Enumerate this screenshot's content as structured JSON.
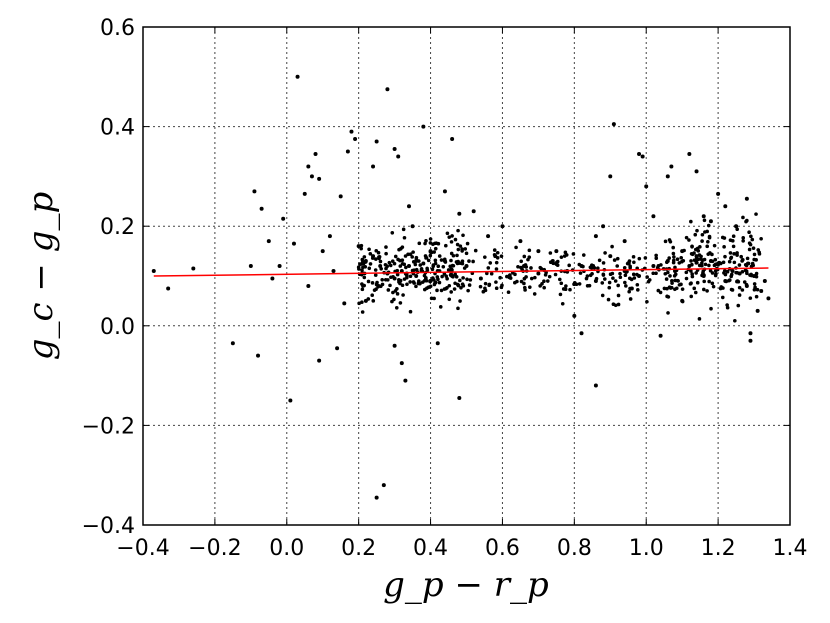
{
  "chart_data": {
    "type": "scatter",
    "xlabel": "g_p − r_p",
    "ylabel": "g_c − g_p",
    "xlim": [
      -0.4,
      1.4
    ],
    "ylim": [
      -0.4,
      0.6
    ],
    "grid": true,
    "x_ticks": [
      "−0.4",
      "−0.2",
      "0.0",
      "0.2",
      "0.4",
      "0.6",
      "0.8",
      "1.0",
      "1.2",
      "1.4"
    ],
    "y_ticks": [
      "−0.4",
      "−0.2",
      "0.0",
      "0.2",
      "0.4",
      "0.6"
    ],
    "x_tick_values": [
      -0.4,
      -0.2,
      0.0,
      0.2,
      0.4,
      0.6,
      0.8,
      1.0,
      1.2,
      1.4
    ],
    "y_tick_values": [
      -0.4,
      -0.2,
      0.0,
      0.2,
      0.4,
      0.6
    ],
    "marker_color": "#000000",
    "fit_line_color": "#ff0000",
    "fit_line": {
      "x": [
        -0.37,
        1.34
      ],
      "y": [
        0.1,
        0.116
      ]
    },
    "points": [
      [
        -0.37,
        0.11
      ],
      [
        -0.33,
        0.075
      ],
      [
        -0.26,
        0.115
      ],
      [
        -0.15,
        -0.035
      ],
      [
        -0.09,
        0.27
      ],
      [
        -0.07,
        0.235
      ],
      [
        -0.1,
        0.12
      ],
      [
        -0.08,
        -0.06
      ],
      [
        -0.05,
        0.17
      ],
      [
        -0.04,
        0.095
      ],
      [
        -0.02,
        0.12
      ],
      [
        -0.01,
        0.215
      ],
      [
        0.01,
        -0.15
      ],
      [
        0.02,
        0.165
      ],
      [
        0.03,
        0.5
      ],
      [
        0.05,
        0.265
      ],
      [
        0.06,
        0.32
      ],
      [
        0.07,
        0.3
      ],
      [
        0.08,
        0.345
      ],
      [
        0.09,
        0.295
      ],
      [
        0.06,
        0.08
      ],
      [
        0.09,
        -0.07
      ],
      [
        0.1,
        0.15
      ],
      [
        0.12,
        0.18
      ],
      [
        0.13,
        0.11
      ],
      [
        0.14,
        -0.045
      ],
      [
        0.15,
        0.26
      ],
      [
        0.16,
        0.045
      ],
      [
        0.17,
        0.35
      ],
      [
        0.18,
        0.39
      ],
      [
        0.19,
        0.375
      ],
      [
        0.2,
        0.16
      ],
      [
        0.22,
        0.05
      ],
      [
        0.24,
        0.32
      ],
      [
        0.25,
        0.37
      ],
      [
        0.25,
        -0.345
      ],
      [
        0.27,
        -0.32
      ],
      [
        0.28,
        0.475
      ],
      [
        0.3,
        0.355
      ],
      [
        0.31,
        0.34
      ],
      [
        0.3,
        -0.04
      ],
      [
        0.32,
        -0.075
      ],
      [
        0.33,
        -0.11
      ],
      [
        0.34,
        0.24
      ],
      [
        0.35,
        0.2
      ],
      [
        0.37,
        0.085
      ],
      [
        0.38,
        0.4
      ],
      [
        0.4,
        0.15
      ],
      [
        0.42,
        -0.035
      ],
      [
        0.44,
        0.27
      ],
      [
        0.46,
        0.375
      ],
      [
        0.48,
        0.225
      ],
      [
        0.48,
        -0.145
      ],
      [
        0.52,
        0.23
      ],
      [
        0.56,
        0.18
      ],
      [
        0.6,
        0.2
      ],
      [
        0.65,
        0.17
      ],
      [
        0.7,
        0.15
      ],
      [
        0.75,
        0.15
      ],
      [
        0.8,
        0.02
      ],
      [
        0.82,
        -0.015
      ],
      [
        0.86,
        0.18
      ],
      [
        0.86,
        -0.12
      ],
      [
        0.88,
        0.2
      ],
      [
        0.9,
        0.3
      ],
      [
        0.91,
        0.405
      ],
      [
        0.94,
        0.17
      ],
      [
        0.96,
        0.075
      ],
      [
        0.98,
        0.345
      ],
      [
        0.99,
        0.34
      ],
      [
        1.0,
        0.28
      ],
      [
        1.02,
        0.22
      ],
      [
        1.04,
        -0.02
      ],
      [
        1.06,
        0.3
      ],
      [
        1.07,
        0.32
      ],
      [
        1.1,
        0.05
      ],
      [
        1.12,
        0.345
      ],
      [
        1.14,
        0.31
      ],
      [
        1.16,
        0.22
      ],
      [
        1.18,
        0.21
      ],
      [
        1.2,
        0.265
      ],
      [
        1.22,
        0.24
      ],
      [
        1.25,
        0.2
      ],
      [
        1.28,
        0.255
      ],
      [
        1.29,
        -0.015
      ],
      [
        1.29,
        -0.03
      ],
      [
        1.31,
        0.03
      ],
      [
        1.33,
        0.09
      ],
      [
        1.34,
        0.055
      ],
      [
        0.22,
        0.13
      ],
      [
        0.24,
        0.14
      ],
      [
        0.26,
        0.12
      ],
      [
        0.28,
        0.105
      ],
      [
        0.3,
        0.095
      ],
      [
        0.32,
        0.11
      ],
      [
        0.34,
        0.12
      ],
      [
        0.36,
        0.1
      ],
      [
        0.38,
        0.125
      ],
      [
        0.4,
        0.09
      ],
      [
        0.42,
        0.11
      ],
      [
        0.44,
        0.13
      ],
      [
        0.46,
        0.1
      ],
      [
        0.5,
        0.12
      ],
      [
        0.54,
        0.095
      ],
      [
        0.58,
        0.14
      ],
      [
        0.62,
        0.1
      ],
      [
        0.66,
        0.12
      ],
      [
        0.7,
        0.105
      ],
      [
        0.74,
        0.13
      ],
      [
        0.78,
        0.11
      ],
      [
        0.82,
        0.12
      ],
      [
        0.86,
        0.09
      ],
      [
        0.9,
        0.14
      ],
      [
        0.94,
        0.11
      ],
      [
        0.98,
        0.1
      ],
      [
        1.02,
        0.12
      ],
      [
        1.06,
        0.13
      ],
      [
        1.08,
        0.11
      ],
      [
        1.1,
        0.15
      ],
      [
        1.12,
        0.12
      ],
      [
        1.14,
        0.14
      ],
      [
        1.16,
        0.1
      ],
      [
        1.18,
        0.13
      ],
      [
        1.2,
        0.125
      ],
      [
        1.22,
        0.09
      ],
      [
        1.24,
        0.11
      ],
      [
        1.26,
        0.105
      ],
      [
        1.28,
        0.08
      ],
      [
        1.3,
        0.1
      ],
      [
        1.32,
        0.07
      ]
    ]
  }
}
